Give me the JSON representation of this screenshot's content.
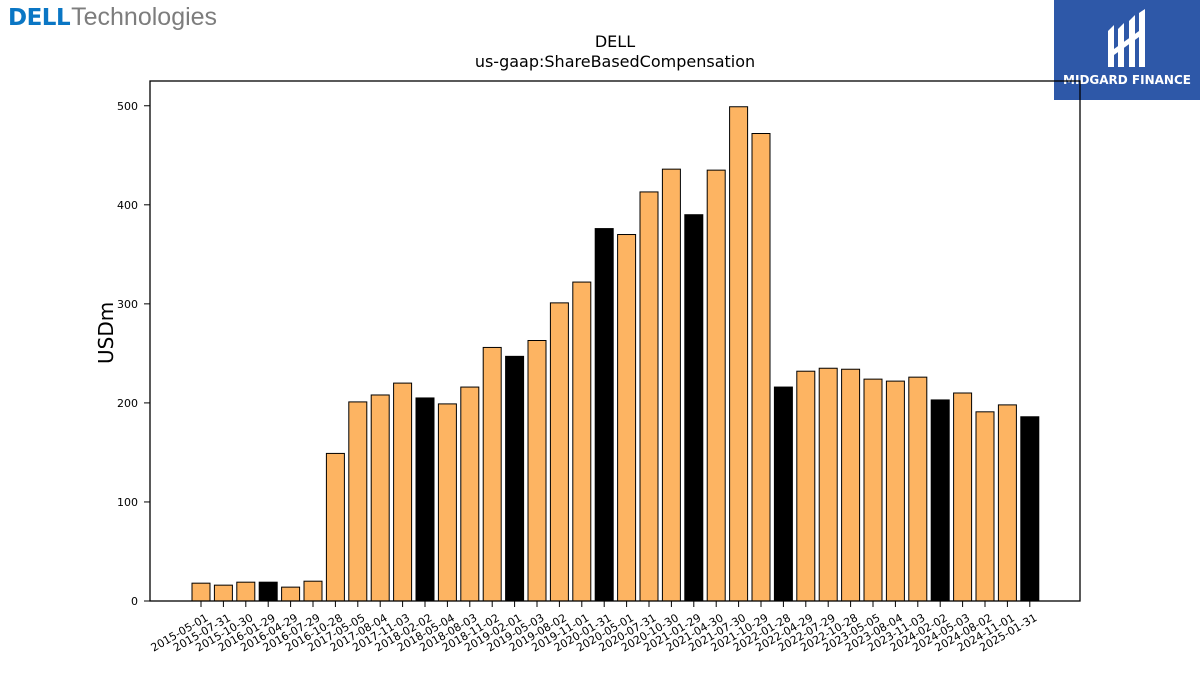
{
  "branding": {
    "left_logo_dell": "DELL",
    "left_logo_tech": "Technologies",
    "right_logo_text": "MIDGARD FINANCE"
  },
  "colors": {
    "bar_fill": "#fdb462",
    "highlight_fill": "#000000",
    "bar_edge": "#000000",
    "brand_dell": "#0a76c4",
    "brand_box": "#2e58a8"
  },
  "chart_data": {
    "type": "bar",
    "title": "DELL",
    "subtitle": "us-gaap:ShareBasedCompensation",
    "xlabel": "",
    "ylabel": "USDm",
    "ylim": [
      0,
      525
    ],
    "yticks": [
      0,
      100,
      200,
      300,
      400,
      500
    ],
    "grid": false,
    "legend": "none",
    "categories": [
      "2015-05-01",
      "2015-07-31",
      "2015-10-30",
      "2016-01-29",
      "2016-04-29",
      "2016-07-29",
      "2016-10-28",
      "2017-05-05",
      "2017-08-04",
      "2017-11-03",
      "2018-02-02",
      "2018-05-04",
      "2018-08-03",
      "2018-11-02",
      "2019-02-01",
      "2019-05-03",
      "2019-08-02",
      "2019-11-01",
      "2020-01-31",
      "2020-05-01",
      "2020-07-31",
      "2020-10-30",
      "2021-01-29",
      "2021-04-30",
      "2021-07-30",
      "2021-10-29",
      "2022-01-28",
      "2022-04-29",
      "2022-07-29",
      "2022-10-28",
      "2023-05-05",
      "2023-08-04",
      "2023-11-03",
      "2024-02-02",
      "2024-05-03",
      "2024-08-02",
      "2024-11-01",
      "2025-01-31"
    ],
    "values": [
      18,
      16,
      19,
      19,
      14,
      20,
      149,
      201,
      208,
      220,
      205,
      199,
      216,
      256,
      247,
      263,
      301,
      322,
      376,
      370,
      413,
      436,
      390,
      435,
      499,
      472,
      216,
      232,
      235,
      234,
      224,
      222,
      226,
      203,
      210,
      191,
      198,
      186
    ],
    "highlight": [
      false,
      false,
      false,
      true,
      false,
      false,
      false,
      false,
      false,
      false,
      true,
      false,
      false,
      false,
      true,
      false,
      false,
      false,
      true,
      false,
      false,
      false,
      true,
      false,
      false,
      false,
      true,
      false,
      false,
      false,
      false,
      false,
      false,
      true,
      false,
      false,
      false,
      true
    ]
  }
}
